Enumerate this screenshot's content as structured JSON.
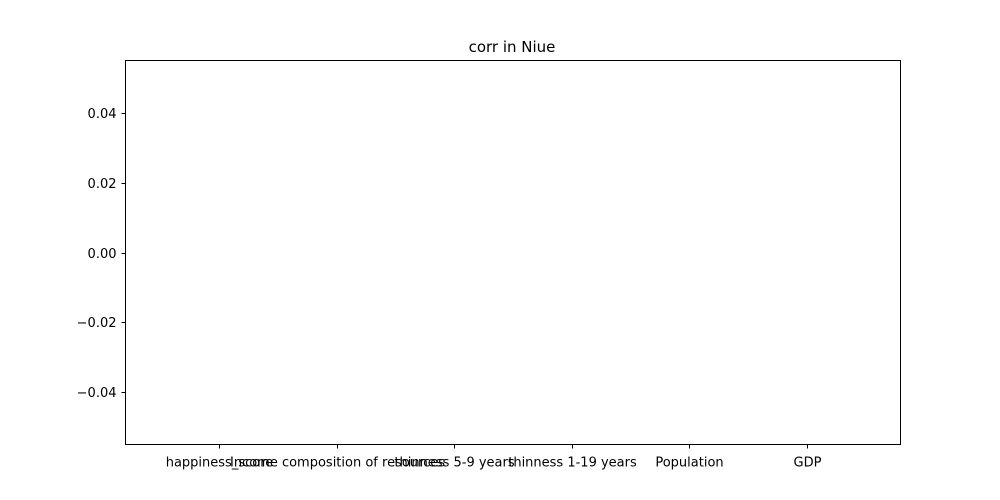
{
  "chart_data": {
    "type": "bar",
    "title": "corr in Niue",
    "xlabel": "",
    "ylabel": "",
    "categories": [
      "happiness_score",
      "Income composition of resources",
      "thinness 5-9 years",
      "thinness  1-19 years",
      "Population",
      "GDP"
    ],
    "values": [
      null,
      null,
      null,
      null,
      null,
      null
    ],
    "ylim": [
      -0.055,
      0.055
    ],
    "yticks": [
      -0.04,
      -0.02,
      0.0,
      0.02,
      0.04
    ],
    "ytick_labels": [
      "−0.04",
      "−0.02",
      "0.00",
      "0.02",
      "0.04"
    ],
    "grid": false,
    "legend": "none",
    "colors": {
      "axes": "#000000",
      "background": "#ffffff"
    }
  }
}
